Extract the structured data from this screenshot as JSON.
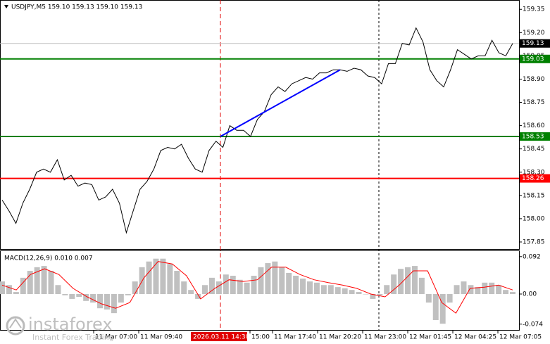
{
  "chart_data": {
    "type": "line",
    "title": "USDJPY,M5  159.10 159.13 159.10 159.13",
    "color": "#000000",
    "values": [
      158.12,
      158.05,
      157.97,
      158.1,
      158.19,
      158.3,
      158.32,
      158.3,
      158.38,
      158.25,
      158.28,
      158.21,
      158.23,
      158.22,
      158.12,
      158.14,
      158.19,
      158.1,
      157.91,
      158.05,
      158.19,
      158.24,
      158.32,
      158.44,
      158.46,
      158.45,
      158.48,
      158.39,
      158.32,
      158.3,
      158.44,
      158.5,
      158.46,
      158.6,
      158.57,
      158.57,
      158.53,
      158.64,
      158.69,
      158.8,
      158.85,
      158.82,
      158.87,
      158.89,
      158.91,
      158.9,
      158.94,
      158.94,
      158.96,
      158.96,
      158.95,
      158.97,
      158.96,
      158.92,
      158.91,
      158.87,
      159.0,
      159.0,
      159.13,
      159.12,
      159.23,
      159.14,
      158.96,
      158.89,
      158.85,
      158.96,
      159.09,
      159.06,
      159.03,
      159.05,
      159.05,
      159.15,
      159.07,
      159.05,
      159.13
    ],
    "ylim": [
      157.8,
      159.41
    ],
    "yticks": [
      159.35,
      {
        "value": 159.2,
        "label": "159.20"
      },
      159.05,
      {
        "value": 158.9,
        "label": "158.90"
      },
      158.75,
      {
        "value": 158.6,
        "label": "158.60"
      },
      158.45,
      {
        "value": 158.3,
        "label": "158.30"
      },
      158.15,
      {
        "value": 158,
        "label": "158.00"
      },
      157.85
    ],
    "current_price": 159.13,
    "levels": [
      {
        "value": 159.03,
        "color": "#008000"
      },
      {
        "value": 158.53,
        "color": "#008000"
      },
      {
        "value": 158.26,
        "color": "#ff0000"
      }
    ],
    "trend_line": {
      "values": [
        158.53,
        158.96
      ],
      "color": "#0000ff"
    },
    "time_labels": [
      "11 Mar 07:00",
      "11 Mar 09:40",
      "15:00",
      "11 Mar 17:40",
      "11 Mar 20:20",
      "11 Mar 23:00",
      "12 Mar 01:45",
      "12 Mar 04:25",
      "12 Mar 07:05"
    ],
    "cursor_label": "2026.03.11 14:30",
    "macd": {
      "label": "MACD(12,26,9) 0.010 0.007",
      "histogram": [
        0.031,
        0.022,
        0.005,
        0.04,
        0.057,
        0.066,
        0.069,
        0.057,
        0.022,
        -0.003,
        -0.012,
        -0.007,
        -0.017,
        -0.021,
        -0.035,
        -0.038,
        -0.047,
        -0.021,
        -0.003,
        0.031,
        0.066,
        0.08,
        0.087,
        0.087,
        0.074,
        0.057,
        0.031,
        0.01,
        -0.012,
        0.022,
        0.04,
        0.031,
        0.048,
        0.045,
        0.035,
        0.028,
        0.045,
        0.066,
        0.076,
        0.08,
        0.066,
        0.052,
        0.045,
        0.038,
        0.031,
        0.028,
        0.022,
        0.022,
        0.017,
        0.014,
        0.01,
        0.005,
        0,
        -0.012,
        -0.003,
        0.022,
        0.048,
        0.062,
        0.066,
        0.069,
        0.04,
        -0.021,
        -0.064,
        -0.073,
        -0.021,
        0.022,
        0.031,
        0.022,
        0.017,
        0.028,
        0.028,
        0.022,
        0.01,
        0.005
      ],
      "histogram_color": "#c0c0c0",
      "signal": [
        0.022,
        0.01,
        0.048,
        0.062,
        0.048,
        0.014,
        -0.007,
        -0.024,
        -0.035,
        -0.021,
        0.04,
        0.08,
        0.074,
        0.045,
        -0.012,
        0.014,
        0.035,
        0.031,
        0.035,
        0.066,
        0.066,
        0.048,
        0.035,
        0.028,
        0.022,
        0.014,
        0,
        -0.007,
        0.022,
        0.057,
        0.057,
        -0.021,
        -0.047,
        0.014,
        0.017,
        0.022,
        0.01
      ],
      "signal_color": "#ff0000",
      "ylim": [
        -0.09,
        0.1055
      ],
      "yticks": [
        0.092,
        {
          "value": 0,
          "label": "0.00"
        },
        -0.074
      ]
    }
  },
  "branding": {
    "name": "instaforex",
    "tagline": "Instant Forex Trading"
  }
}
